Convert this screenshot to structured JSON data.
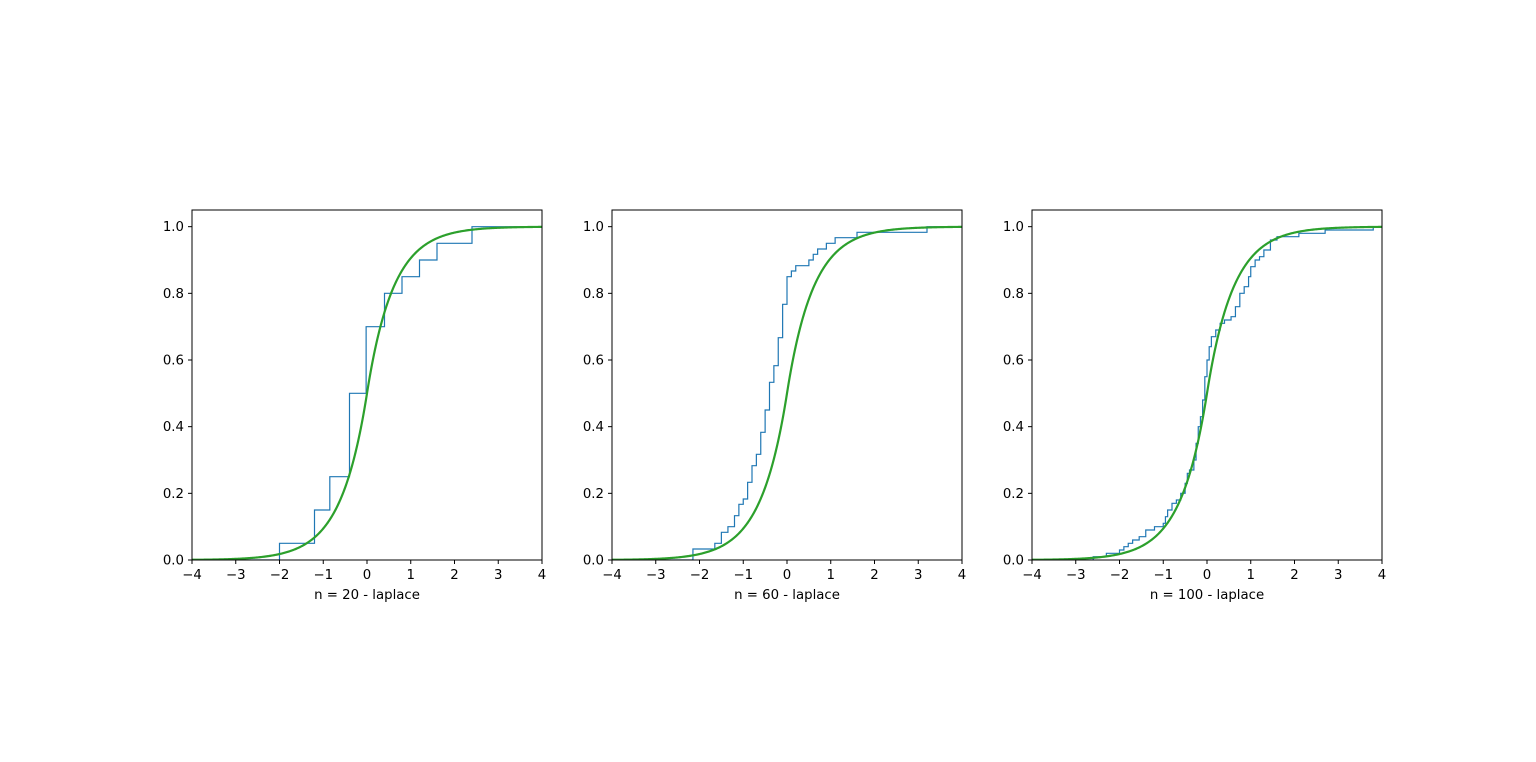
{
  "colors": {
    "ecdf": "#1f77b4",
    "cdf": "#2ca02c",
    "axes": "#000000",
    "background": "#ffffff"
  },
  "chart_data": [
    {
      "type": "line",
      "xlabel": "n = 20 - laplace",
      "xlim": [
        -4,
        4
      ],
      "ylim": [
        0,
        1.05
      ],
      "xticks": [
        -4,
        -3,
        -2,
        -1,
        0,
        1,
        2,
        3,
        4
      ],
      "yticks": [
        0.0,
        0.2,
        0.4,
        0.6,
        0.8,
        1.0
      ],
      "xtick_labels": [
        "−4",
        "−3",
        "−2",
        "−1",
        "0",
        "1",
        "2",
        "3",
        "4"
      ],
      "ytick_labels": [
        "0.0",
        "0.2",
        "0.4",
        "0.6",
        "0.8",
        "1.0"
      ],
      "grid": false,
      "series": [
        {
          "kind": "ecdf-step",
          "x": [
            -2.0,
            -1.85,
            -1.2,
            -0.85,
            -0.4,
            -0.4,
            -0.4,
            -0.4,
            -0.4,
            -0.02,
            -0.02,
            -0.02,
            -0.02,
            0.4,
            0.4,
            0.8,
            1.2,
            1.6,
            1.6,
            2.4
          ],
          "y": [
            0.05,
            0.05,
            0.15,
            0.25,
            0.5,
            0.5,
            0.5,
            0.5,
            0.5,
            0.7,
            0.7,
            0.7,
            0.7,
            0.8,
            0.8,
            0.85,
            0.9,
            0.95,
            0.95,
            1.0
          ]
        },
        {
          "kind": "laplace-cdf",
          "loc": 0,
          "scale": 0.6
        }
      ]
    },
    {
      "type": "line",
      "xlabel": "n = 60 - laplace",
      "xlim": [
        -4,
        4
      ],
      "ylim": [
        0,
        1.05
      ],
      "xticks": [
        -4,
        -3,
        -2,
        -1,
        0,
        1,
        2,
        3,
        4
      ],
      "yticks": [
        0.0,
        0.2,
        0.4,
        0.6,
        0.8,
        1.0
      ],
      "xtick_labels": [
        "−4",
        "−3",
        "−2",
        "−1",
        "0",
        "1",
        "2",
        "3",
        "4"
      ],
      "ytick_labels": [
        "0.0",
        "0.2",
        "0.4",
        "0.6",
        "0.8",
        "1.0"
      ],
      "grid": false,
      "series": [
        {
          "kind": "ecdf-step",
          "x": [
            -2.15,
            -1.65,
            -1.5,
            -1.35,
            -1.2,
            -1.1,
            -1.0,
            -0.9,
            -0.8,
            -0.7,
            -0.6,
            -0.5,
            -0.4,
            -0.3,
            -0.2,
            -0.1,
            0.0,
            0.1,
            0.2,
            0.5,
            0.6,
            0.7,
            0.9,
            1.1,
            1.6,
            2.0,
            3.2
          ],
          "y": [
            0.033,
            0.05,
            0.083,
            0.1,
            0.133,
            0.167,
            0.183,
            0.233,
            0.283,
            0.317,
            0.383,
            0.45,
            0.533,
            0.583,
            0.667,
            0.767,
            0.85,
            0.867,
            0.883,
            0.9,
            0.917,
            0.933,
            0.95,
            0.967,
            0.983,
            0.983,
            1.0
          ]
        },
        {
          "kind": "laplace-cdf",
          "loc": 0,
          "scale": 0.6
        }
      ]
    },
    {
      "type": "line",
      "xlabel": "n = 100 - laplace",
      "xlim": [
        -4,
        4
      ],
      "ylim": [
        0,
        1.05
      ],
      "xticks": [
        -4,
        -3,
        -2,
        -1,
        0,
        1,
        2,
        3,
        4
      ],
      "yticks": [
        0.0,
        0.2,
        0.4,
        0.6,
        0.8,
        1.0
      ],
      "xtick_labels": [
        "−4",
        "−3",
        "−2",
        "−1",
        "0",
        "1",
        "2",
        "3",
        "4"
      ],
      "ytick_labels": [
        "0.0",
        "0.2",
        "0.4",
        "0.6",
        "0.8",
        "1.0"
      ],
      "grid": false,
      "series": [
        {
          "kind": "ecdf-step",
          "x": [
            -2.6,
            -2.3,
            -2.0,
            -1.9,
            -1.8,
            -1.7,
            -1.55,
            -1.4,
            -1.2,
            -1.0,
            -0.95,
            -0.9,
            -0.8,
            -0.7,
            -0.6,
            -0.5,
            -0.45,
            -0.4,
            -0.3,
            -0.25,
            -0.2,
            -0.15,
            -0.1,
            -0.05,
            0.0,
            0.05,
            0.1,
            0.2,
            0.3,
            0.4,
            0.55,
            0.65,
            0.75,
            0.85,
            0.95,
            1.0,
            1.1,
            1.2,
            1.3,
            1.45,
            1.6,
            2.1,
            2.7,
            3.8
          ],
          "y": [
            0.01,
            0.02,
            0.03,
            0.04,
            0.05,
            0.06,
            0.07,
            0.09,
            0.1,
            0.11,
            0.13,
            0.15,
            0.17,
            0.18,
            0.2,
            0.23,
            0.26,
            0.27,
            0.3,
            0.35,
            0.4,
            0.43,
            0.48,
            0.55,
            0.6,
            0.64,
            0.67,
            0.69,
            0.71,
            0.72,
            0.73,
            0.76,
            0.8,
            0.82,
            0.85,
            0.88,
            0.9,
            0.91,
            0.93,
            0.96,
            0.97,
            0.98,
            0.99,
            1.0
          ]
        },
        {
          "kind": "laplace-cdf",
          "loc": 0,
          "scale": 0.6
        }
      ]
    }
  ]
}
